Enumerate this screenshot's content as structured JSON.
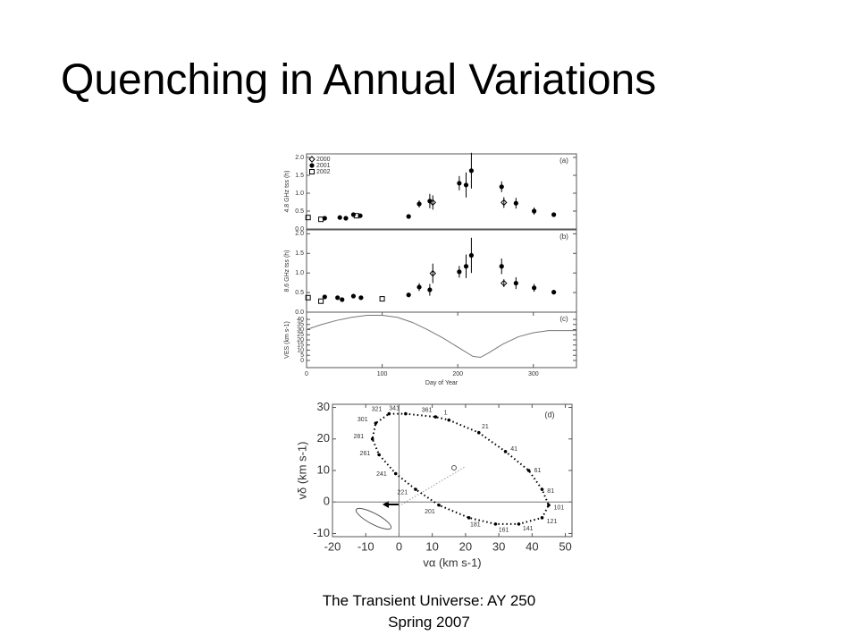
{
  "title": "Quenching in Annual Variations",
  "footer": [
    "The Transient Universe: AY 250",
    "Spring 2007"
  ],
  "chart_data": [
    {
      "type": "scatter",
      "annotation": "(a)",
      "ylabel": "4.8 GHz  tss (h)",
      "xlim": [
        0,
        357
      ],
      "ylim": [
        0,
        2.1
      ],
      "yticks": [
        {
          "value": 0,
          "label": "0.0"
        },
        {
          "value": 0.5,
          "label": "0.5"
        },
        {
          "value": 1,
          "label": "1.0"
        },
        {
          "value": 1.5,
          "label": "1.5"
        },
        {
          "value": 2,
          "label": "2.0"
        }
      ],
      "series": [
        {
          "name": "2000",
          "marker": "diamond",
          "color": "#000000",
          "x": [
            167,
            261
          ],
          "values": [
            0.74,
            0.74
          ],
          "errors": [
            0.2,
            0.15
          ]
        },
        {
          "name": "2001",
          "marker": "circle",
          "color": "#000000",
          "x": [
            24,
            44,
            52,
            62,
            71,
            135,
            149,
            163,
            202,
            211,
            218,
            258,
            277,
            301,
            327
          ],
          "values": [
            0.3,
            0.32,
            0.3,
            0.4,
            0.37,
            0.35,
            0.7,
            0.78,
            1.28,
            1.23,
            1.63,
            1.18,
            0.72,
            0.5,
            0.4
          ],
          "errors": [
            null,
            null,
            null,
            null,
            null,
            null,
            0.1,
            0.2,
            0.2,
            0.35,
            0.5,
            0.15,
            0.15,
            0.1,
            null
          ]
        },
        {
          "name": "2002",
          "marker": "square",
          "color": "#000000",
          "x": [
            2,
            19,
            66
          ],
          "values": [
            0.32,
            0.27,
            0.37
          ],
          "errors": [
            null,
            null,
            null
          ]
        }
      ]
    },
    {
      "type": "scatter",
      "annotation": "(b)",
      "ylabel": "8.6 GHz  tss (h)",
      "xlim": [
        0,
        357
      ],
      "ylim": [
        0,
        2.1
      ],
      "yticks": [
        {
          "value": 0,
          "label": "0.0"
        },
        {
          "value": 0.5,
          "label": "0.5"
        },
        {
          "value": 1,
          "label": "1.0"
        },
        {
          "value": 1.5,
          "label": "1.5"
        },
        {
          "value": 2,
          "label": "2.0"
        }
      ],
      "series": [
        {
          "marker": "diamond",
          "color": "#000000",
          "x": [
            167,
            261
          ],
          "values": [
            0.99,
            0.74
          ],
          "errors": [
            0.25,
            0.1
          ]
        },
        {
          "marker": "circle",
          "color": "#000000",
          "x": [
            24,
            41,
            47,
            62,
            72,
            135,
            149,
            163,
            202,
            211,
            218,
            258,
            277,
            301,
            327
          ],
          "values": [
            0.39,
            0.37,
            0.32,
            0.41,
            0.37,
            0.44,
            0.64,
            0.57,
            1.03,
            1.17,
            1.45,
            1.17,
            0.74,
            0.62,
            0.51
          ],
          "errors": [
            null,
            null,
            null,
            null,
            null,
            null,
            0.1,
            0.15,
            0.15,
            0.3,
            0.45,
            0.2,
            0.15,
            0.1,
            null
          ]
        },
        {
          "marker": "square",
          "color": "#000000",
          "x": [
            2,
            19,
            100
          ],
          "values": [
            0.37,
            0.28,
            0.34
          ],
          "errors": [
            null,
            null,
            null
          ]
        }
      ]
    },
    {
      "type": "line",
      "annotation": "(c)",
      "ylabel": "VES (km s-1)",
      "xlabel": "Day of Year",
      "xlim": [
        0,
        357
      ],
      "ylim": [
        -7,
        47
      ],
      "xticks": [
        0,
        100,
        200,
        300
      ],
      "yticks": [
        0,
        5,
        10,
        15,
        20,
        25,
        30,
        35,
        40
      ],
      "color": "#777777",
      "x": [
        0,
        20,
        40,
        60,
        80,
        100,
        120,
        140,
        160,
        180,
        200,
        220,
        230,
        240,
        260,
        280,
        300,
        320,
        340,
        357
      ],
      "values": [
        30,
        35,
        39,
        42,
        44,
        44,
        42,
        37,
        30,
        22,
        13,
        4,
        3,
        7,
        16,
        23,
        27,
        29,
        29,
        29
      ]
    },
    {
      "type": "ellipse",
      "annotation": "(d)",
      "xlabel": "vα  (km s-1)",
      "ylabel": "vδ  (km s-1)",
      "xlim": [
        -20,
        52
      ],
      "ylim": [
        -11,
        31
      ],
      "xticks": [
        -20,
        -10,
        0,
        10,
        20,
        30,
        40,
        50
      ],
      "yticks": [
        -10,
        0,
        10,
        20,
        30
      ],
      "color": "#000000",
      "point_labels": [
        321,
        341,
        361,
        1,
        21,
        41,
        61,
        81,
        101,
        121,
        141,
        161,
        181,
        201,
        221,
        241,
        261,
        281,
        301
      ],
      "x": [
        -3,
        2,
        11,
        15,
        24,
        32,
        39,
        43,
        45,
        43,
        36,
        29,
        21,
        12,
        5,
        -1,
        -6,
        -8,
        -7
      ],
      "values": [
        28,
        28,
        27,
        26,
        22,
        16,
        10,
        4,
        -1,
        -5,
        -7,
        -7,
        -5,
        -1,
        4,
        9,
        15,
        20,
        25
      ]
    }
  ]
}
